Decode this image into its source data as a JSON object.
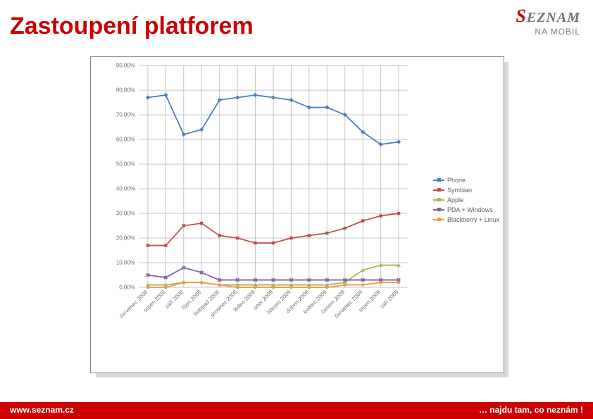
{
  "title": "Zastoupení platforem",
  "logo": {
    "s": "S",
    "rest": "EZNAM",
    "sub": "NA MOBIL"
  },
  "footer": {
    "left": "www.seznam.cz",
    "right": "… najdu tam, co neznám !"
  },
  "chart": {
    "type": "line",
    "background_color": "#ffffff",
    "border_color": "#888888",
    "grid_color": "#bfbfbf",
    "axis_label_color": "#707070",
    "axis_fontsize": 9,
    "ylim": [
      0,
      90
    ],
    "ytick_step": 10,
    "yticks": [
      "0,00%",
      "10,00%",
      "20,00%",
      "30,00%",
      "40,00%",
      "50,00%",
      "60,00%",
      "70,00%",
      "80,00%",
      "90,00%"
    ],
    "categories": [
      "červenec 2008",
      "srpen 2008",
      "září 2008",
      "říjen 2008",
      "listopad 2008",
      "prosinec 2008",
      "leden 2009",
      "únor 2009",
      "březen 2009",
      "duben 2009",
      "květen 2009",
      "červen 2009",
      "červenec 2009",
      "srpen 2009",
      "září 2009"
    ],
    "series": [
      {
        "name": "Phone",
        "color": "#4a7ebb",
        "marker": "diamond",
        "data": [
          77,
          78,
          62,
          64,
          76,
          77,
          78,
          77,
          76,
          73,
          73,
          70,
          63,
          58,
          59
        ]
      },
      {
        "name": "Symbian",
        "color": "#c0504d",
        "marker": "square",
        "data": [
          17,
          17,
          25,
          26,
          21,
          20,
          18,
          18,
          20,
          21,
          22,
          24,
          27,
          29,
          30
        ]
      },
      {
        "name": "Apple",
        "color": "#9bbb59",
        "marker": "triangle",
        "data": [
          1,
          1,
          2,
          2,
          1,
          1,
          1,
          1,
          1,
          1,
          1,
          2,
          7,
          9,
          9
        ]
      },
      {
        "name": "PDA + Windows",
        "color": "#8064a2",
        "marker": "x",
        "data": [
          5,
          4,
          8,
          6,
          3,
          3,
          3,
          3,
          3,
          3,
          3,
          3,
          3,
          3,
          3
        ]
      },
      {
        "name": "Blackberry + Linux",
        "color": "#f79646",
        "marker": "circle",
        "data": [
          0,
          0,
          2,
          2,
          1,
          0,
          0,
          0,
          0,
          0,
          0,
          1,
          1,
          2,
          2
        ]
      }
    ],
    "legend": {
      "fontsize": 9,
      "position": "right"
    },
    "line_width": 2,
    "marker_size": 5
  }
}
